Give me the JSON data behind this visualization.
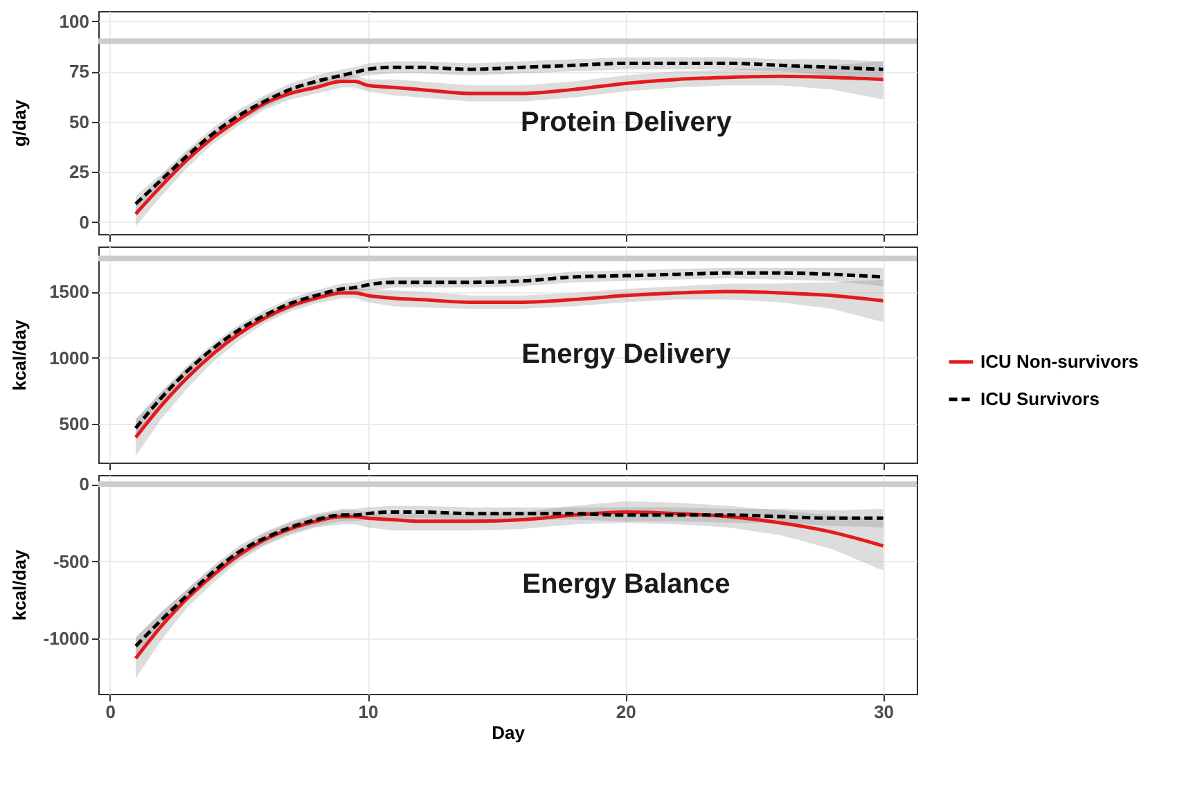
{
  "chart_data": [
    {
      "type": "line",
      "ylabel": "g/day",
      "xlim": [
        -0.45,
        31.3
      ],
      "xticks": [
        0,
        10,
        20,
        30
      ],
      "ylim": [
        -6,
        105
      ],
      "yticks": [
        0,
        25,
        50,
        75,
        100
      ],
      "grid": true,
      "tick_labels": "y",
      "annotations": [
        "Protein Delivery"
      ],
      "ref_lines": [
        {
          "axis": "y",
          "value": 90,
          "color": "#cccccc"
        }
      ],
      "x": [
        1,
        2,
        3,
        4,
        5,
        6,
        7,
        8,
        9,
        9.5,
        10,
        11,
        12,
        14,
        16,
        18,
        20,
        22,
        24,
        26,
        28,
        30
      ],
      "series": [
        {
          "color": "#e41a1c",
          "line_style": "solid",
          "values": [
            4,
            18,
            31,
            42,
            51,
            59,
            64,
            67,
            70,
            70,
            68,
            67,
            66,
            64,
            64,
            66,
            69,
            71,
            72,
            72.5,
            72,
            71
          ],
          "lower": [
            -2,
            13,
            27,
            39,
            48,
            56,
            61,
            64,
            67,
            67,
            65,
            63,
            62,
            60,
            60,
            62,
            65,
            67,
            68,
            68,
            66,
            61
          ],
          "upper": [
            10,
            23,
            35,
            45,
            54,
            62,
            67,
            70,
            73,
            73,
            71,
            71,
            70,
            68,
            68,
            70,
            73,
            75,
            76,
            77,
            78,
            80
          ]
        },
        {
          "color": "#000000",
          "line_style": "dashed",
          "values": [
            9,
            21,
            33,
            44,
            53,
            60,
            66,
            70,
            73,
            74.5,
            76,
            77,
            77,
            76,
            77,
            78,
            79,
            79,
            79,
            78,
            77,
            76
          ],
          "lower": [
            5,
            18,
            30,
            41,
            50,
            57,
            63,
            67,
            70,
            72,
            73,
            74,
            74,
            73,
            74,
            75,
            76,
            76,
            76,
            75,
            73,
            72
          ],
          "upper": [
            13,
            24,
            36,
            47,
            56,
            63,
            69,
            73,
            76,
            77,
            79,
            80,
            80,
            79,
            80,
            81,
            82,
            82,
            82,
            81,
            81,
            80
          ]
        }
      ]
    },
    {
      "type": "line",
      "ylabel": "kcal/day",
      "xlim": [
        -0.45,
        31.3
      ],
      "xticks": [
        0,
        10,
        20,
        30
      ],
      "ylim": [
        210,
        1840
      ],
      "yticks": [
        500,
        1000,
        1500
      ],
      "grid": true,
      "legend": "right",
      "tick_labels": "y",
      "annotations": [
        "Energy Delivery"
      ],
      "ref_lines": [
        {
          "axis": "y",
          "value": 1750,
          "color": "#cccccc"
        }
      ],
      "x": [
        1,
        2,
        3,
        4,
        5,
        6,
        7,
        8,
        9,
        9.5,
        10,
        11,
        12,
        14,
        16,
        18,
        20,
        22,
        24,
        26,
        28,
        30
      ],
      "series": [
        {
          "name": "ICU Non-survivors",
          "color": "#e41a1c",
          "line_style": "solid",
          "values": [
            400,
            640,
            850,
            1030,
            1180,
            1300,
            1390,
            1450,
            1490,
            1490,
            1470,
            1450,
            1440,
            1420,
            1420,
            1440,
            1470,
            1490,
            1500,
            1490,
            1470,
            1430
          ],
          "lower": [
            260,
            540,
            770,
            970,
            1130,
            1260,
            1350,
            1410,
            1450,
            1450,
            1420,
            1390,
            1380,
            1370,
            1370,
            1390,
            1420,
            1440,
            1440,
            1420,
            1370,
            1270
          ],
          "upper": [
            540,
            740,
            930,
            1090,
            1230,
            1340,
            1430,
            1490,
            1530,
            1530,
            1520,
            1510,
            1500,
            1470,
            1470,
            1490,
            1520,
            1540,
            1560,
            1560,
            1570,
            1590
          ]
        },
        {
          "name": "ICU Survivors",
          "color": "#000000",
          "line_style": "dashed",
          "values": [
            470,
            700,
            900,
            1070,
            1210,
            1320,
            1410,
            1470,
            1520,
            1530,
            1550,
            1570,
            1570,
            1570,
            1580,
            1610,
            1620,
            1630,
            1640,
            1640,
            1630,
            1610
          ],
          "lower": [
            410,
            650,
            860,
            1030,
            1170,
            1280,
            1370,
            1430,
            1480,
            1490,
            1510,
            1530,
            1530,
            1530,
            1540,
            1570,
            1580,
            1590,
            1600,
            1590,
            1580,
            1540
          ],
          "upper": [
            530,
            750,
            940,
            1110,
            1250,
            1360,
            1450,
            1510,
            1560,
            1570,
            1590,
            1610,
            1610,
            1610,
            1620,
            1650,
            1660,
            1670,
            1680,
            1680,
            1680,
            1680
          ]
        }
      ]
    },
    {
      "type": "line",
      "xlabel": "Day",
      "ylabel": "kcal/day",
      "xlim": [
        -0.45,
        31.3
      ],
      "xticks": [
        0,
        10,
        20,
        30
      ],
      "ylim": [
        -1360,
        60
      ],
      "yticks": [
        -1000,
        -500,
        0
      ],
      "grid": true,
      "annotations": [
        "Energy Balance"
      ],
      "ref_lines": [
        {
          "axis": "y",
          "value": 0,
          "color": "#cccccc"
        }
      ],
      "x": [
        1,
        2,
        3,
        4,
        5,
        6,
        7,
        8,
        9,
        9.5,
        10,
        11,
        12,
        14,
        16,
        18,
        20,
        22,
        24,
        26,
        28,
        30
      ],
      "series": [
        {
          "color": "#e41a1c",
          "line_style": "solid",
          "values": [
            -1130,
            -920,
            -740,
            -590,
            -460,
            -360,
            -290,
            -240,
            -210,
            -210,
            -220,
            -230,
            -240,
            -240,
            -230,
            -200,
            -180,
            -190,
            -210,
            -250,
            -310,
            -400
          ],
          "lower": [
            -1260,
            -1010,
            -800,
            -640,
            -500,
            -400,
            -330,
            -280,
            -260,
            -260,
            -280,
            -300,
            -300,
            -300,
            -290,
            -260,
            -250,
            -260,
            -280,
            -330,
            -420,
            -560
          ],
          "upper": [
            -1000,
            -830,
            -680,
            -540,
            -420,
            -320,
            -250,
            -200,
            -170,
            -170,
            -180,
            -190,
            -190,
            -190,
            -180,
            -140,
            -110,
            -120,
            -140,
            -170,
            -200,
            -230
          ]
        },
        {
          "color": "#000000",
          "line_style": "dashed",
          "values": [
            -1050,
            -880,
            -720,
            -570,
            -440,
            -350,
            -280,
            -230,
            -200,
            -200,
            -190,
            -180,
            -180,
            -190,
            -190,
            -190,
            -200,
            -200,
            -200,
            -210,
            -220,
            -220
          ],
          "lower": [
            -1110,
            -930,
            -760,
            -610,
            -480,
            -390,
            -320,
            -270,
            -240,
            -240,
            -230,
            -220,
            -220,
            -230,
            -230,
            -230,
            -240,
            -240,
            -250,
            -250,
            -270,
            -280
          ],
          "upper": [
            -990,
            -830,
            -680,
            -530,
            -400,
            -310,
            -240,
            -190,
            -160,
            -160,
            -150,
            -140,
            -140,
            -150,
            -150,
            -150,
            -150,
            -150,
            -160,
            -160,
            -170,
            -160
          ]
        }
      ]
    }
  ]
}
